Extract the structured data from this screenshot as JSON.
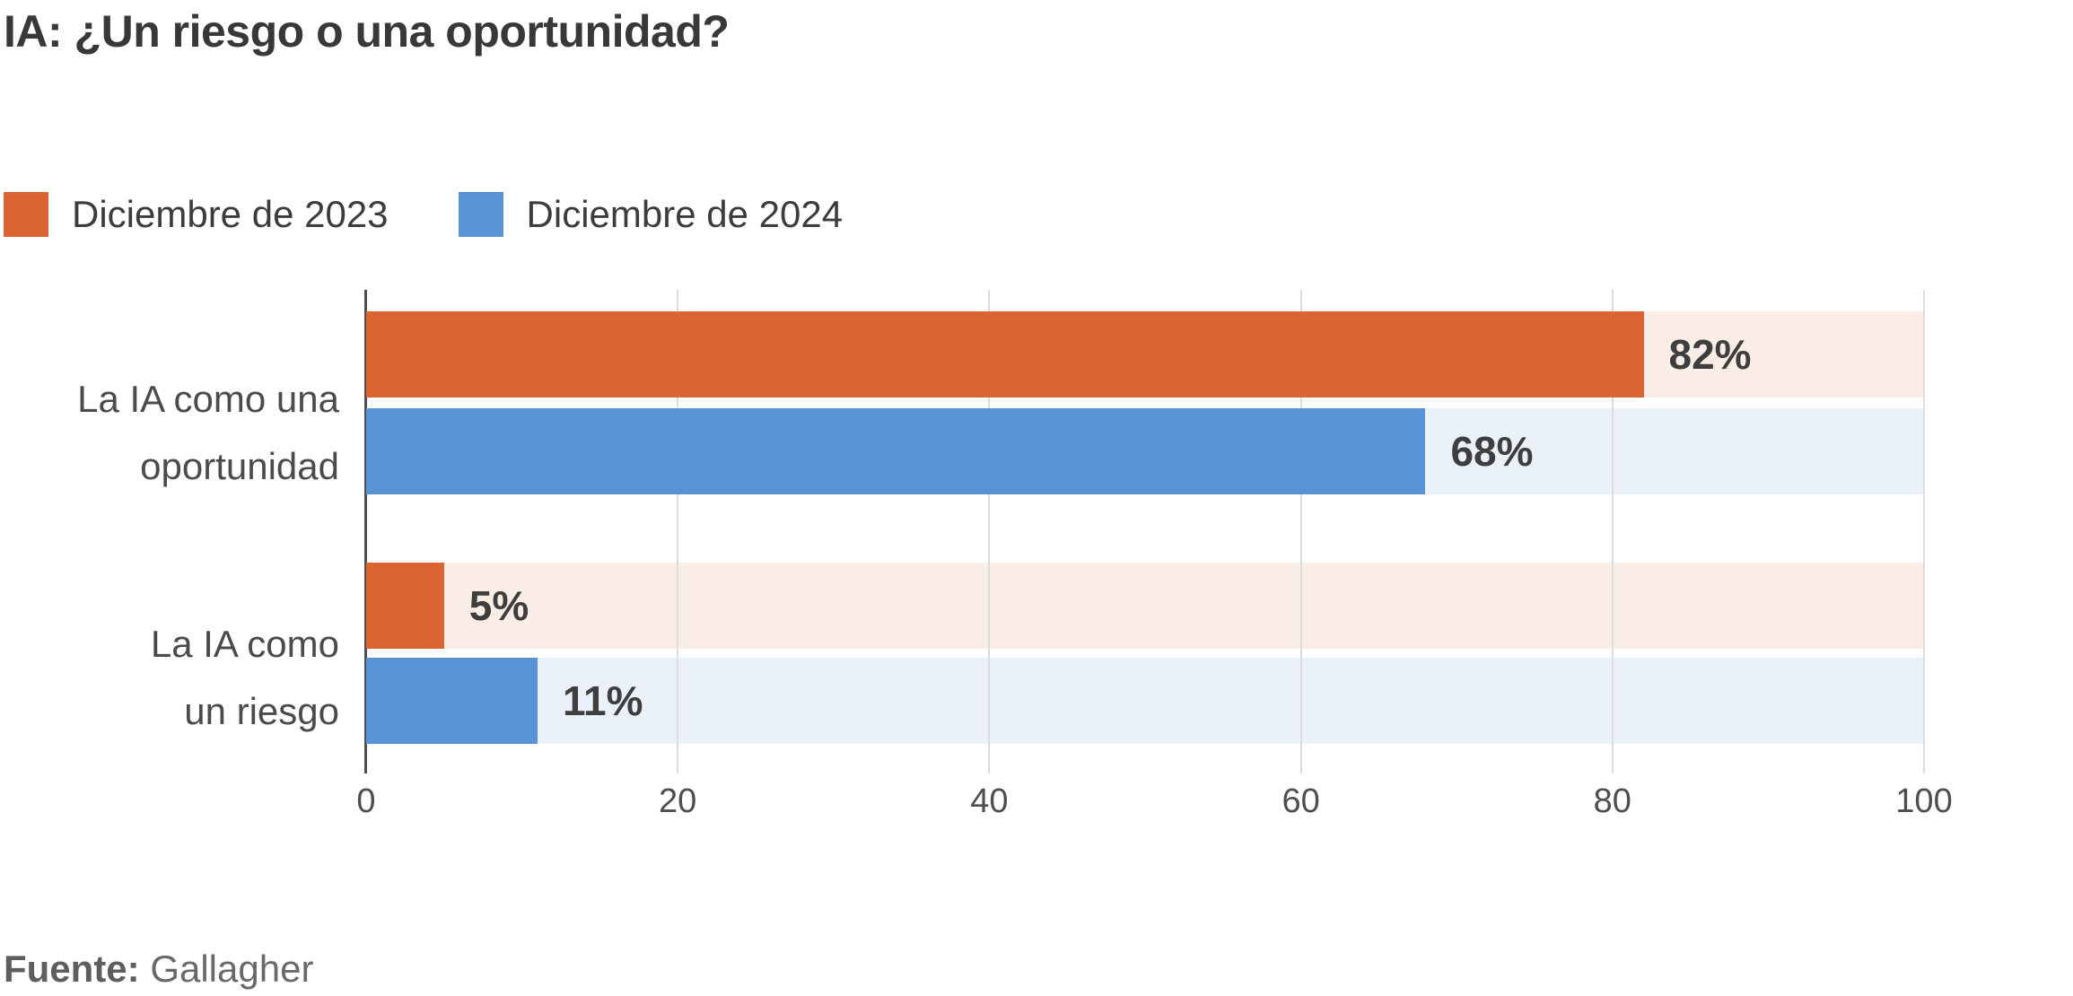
{
  "title": "IA: ¿Un riesgo o una oportunidad?",
  "colors": {
    "series_2023": "#DB6433",
    "series_2024": "#5A93D5",
    "track_2023": "#FAEDE5",
    "track_2024": "#EAF1F9",
    "gridline": "#DCDCDC",
    "axis": "#4D4D4D"
  },
  "legend": {
    "items": [
      {
        "label": "Diciembre de 2023"
      },
      {
        "label": "Diciembre de 2024"
      }
    ]
  },
  "rows": [
    {
      "label_line1": "La IA como una",
      "label_line2": "oportunidad",
      "bars": [
        {
          "series": "Diciembre de 2023",
          "value": 82,
          "label": "82%"
        },
        {
          "series": "Diciembre de 2024",
          "value": 68,
          "label": "68%"
        }
      ]
    },
    {
      "label_line1": "La IA como",
      "label_line2": "un riesgo",
      "bars": [
        {
          "series": "Diciembre de 2023",
          "value": 5,
          "label": "5%"
        },
        {
          "series": "Diciembre de 2024",
          "value": 11,
          "label": "11%"
        }
      ]
    }
  ],
  "axis": {
    "ticks": [
      "0",
      "20",
      "40",
      "60",
      "80",
      "100"
    ]
  },
  "source": {
    "label": "Fuente:",
    "text": "Gallagher"
  },
  "chart_data": {
    "type": "bar",
    "orientation": "horizontal",
    "title": "IA: ¿Un riesgo o una oportunidad?",
    "categories": [
      "La IA como una oportunidad",
      "La IA como un riesgo"
    ],
    "series": [
      {
        "name": "Diciembre de 2023",
        "values": [
          82,
          5
        ],
        "color": "#DB6433"
      },
      {
        "name": "Diciembre de 2024",
        "values": [
          68,
          11
        ],
        "color": "#5A93D5"
      }
    ],
    "value_suffix": "%",
    "xlim": [
      0,
      100
    ],
    "x_ticks": [
      0,
      20,
      40,
      60,
      80,
      100
    ],
    "grid": true,
    "legend_position": "top-left",
    "source_label": "Fuente:",
    "source": "Gallagher"
  }
}
